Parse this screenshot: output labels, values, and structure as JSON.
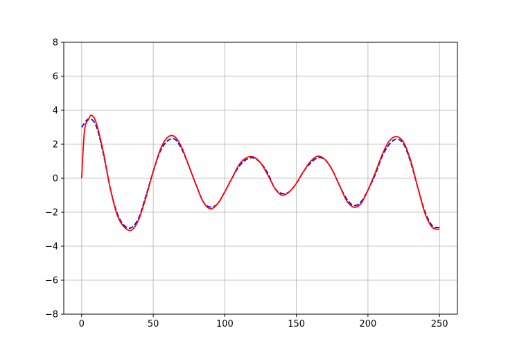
{
  "chart_data": {
    "type": "line",
    "title": "",
    "xlabel": "",
    "ylabel": "",
    "xlim": [
      -12.5,
      262.5
    ],
    "ylim": [
      -8,
      8
    ],
    "grid": true,
    "x_ticks": [
      0,
      50,
      100,
      150,
      200,
      250
    ],
    "x_tick_labels": [
      "0",
      "50",
      "100",
      "150",
      "200",
      "250"
    ],
    "y_ticks": [
      -8,
      -6,
      -4,
      -2,
      0,
      2,
      4,
      6,
      8
    ],
    "y_tick_labels": [
      "−8",
      "−6",
      "−4",
      "−2",
      "0",
      "2",
      "4",
      "6",
      "8"
    ],
    "series": [
      {
        "style": "dashed",
        "color": "#0000ff",
        "x": [
          0,
          5,
          10,
          15,
          20,
          25,
          30,
          35,
          40,
          45,
          50,
          55,
          60,
          65,
          70,
          75,
          80,
          85,
          90,
          95,
          100,
          105,
          110,
          115,
          120,
          125,
          130,
          135,
          140,
          145,
          150,
          155,
          160,
          165,
          170,
          175,
          180,
          185,
          190,
          195,
          200,
          205,
          210,
          215,
          220,
          225,
          230,
          235,
          240,
          245,
          250
        ],
        "y": [
          3.0,
          3.5,
          3.1,
          1.5,
          -0.6,
          -2.1,
          -2.8,
          -2.9,
          -2.3,
          -1.0,
          0.4,
          1.6,
          2.2,
          2.3,
          1.7,
          0.7,
          -0.4,
          -1.4,
          -1.7,
          -1.5,
          -0.8,
          0.0,
          0.7,
          1.1,
          1.2,
          0.9,
          0.3,
          -0.6,
          -0.9,
          -0.8,
          -0.3,
          0.4,
          0.9,
          1.2,
          1.1,
          0.5,
          -0.4,
          -1.2,
          -1.6,
          -1.4,
          -0.7,
          0.2,
          1.3,
          2.0,
          2.3,
          2.0,
          0.9,
          -0.6,
          -2.0,
          -2.8,
          -2.9
        ]
      },
      {
        "style": "solid",
        "color": "#ff0000",
        "x": [
          0,
          2,
          5,
          7,
          10,
          15,
          20,
          25,
          30,
          35,
          40,
          45,
          50,
          55,
          60,
          65,
          70,
          75,
          80,
          85,
          90,
          95,
          100,
          105,
          110,
          115,
          120,
          125,
          130,
          135,
          140,
          145,
          150,
          155,
          160,
          165,
          170,
          175,
          180,
          185,
          190,
          195,
          200,
          205,
          210,
          215,
          220,
          225,
          230,
          235,
          240,
          245,
          250
        ],
        "y": [
          0.0,
          2.8,
          3.5,
          3.7,
          3.3,
          1.6,
          -0.6,
          -2.2,
          -2.9,
          -3.05,
          -2.4,
          -1.1,
          0.4,
          1.7,
          2.4,
          2.45,
          1.8,
          0.7,
          -0.4,
          -1.4,
          -1.8,
          -1.5,
          -0.8,
          0.0,
          0.8,
          1.2,
          1.25,
          0.9,
          0.2,
          -0.6,
          -1.0,
          -0.8,
          -0.3,
          0.4,
          1.0,
          1.3,
          1.1,
          0.5,
          -0.4,
          -1.3,
          -1.7,
          -1.5,
          -0.7,
          0.3,
          1.4,
          2.2,
          2.45,
          2.1,
          1.0,
          -0.6,
          -2.1,
          -2.9,
          -3.0
        ]
      }
    ]
  }
}
